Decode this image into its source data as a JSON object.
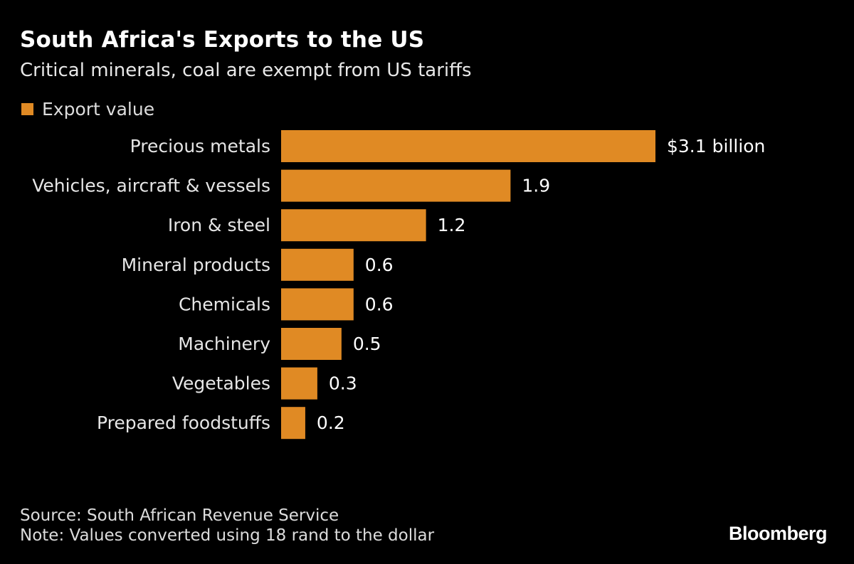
{
  "header": {
    "title": "South Africa's Exports to the US",
    "subtitle": "Critical minerals, coal are exempt from US tariffs"
  },
  "legend": {
    "label": "Export value"
  },
  "colors": {
    "bar": "#e08a24",
    "background": "#000000",
    "text": "#ffffff"
  },
  "chart_data": {
    "type": "bar",
    "orientation": "horizontal",
    "title": "South Africa's Exports to the US",
    "subtitle": "Critical minerals, coal are exempt from US tariffs",
    "categories": [
      "Precious metals",
      "Vehicles, aircraft & vessels",
      "Iron & steel",
      "Mineral products",
      "Chemicals",
      "Machinery",
      "Vegetables",
      "Prepared foodstuffs"
    ],
    "values": [
      3.1,
      1.9,
      1.2,
      0.6,
      0.6,
      0.5,
      0.3,
      0.2
    ],
    "value_labels": [
      "$3.1 billion",
      "1.9",
      "1.2",
      "0.6",
      "0.6",
      "0.5",
      "0.3",
      "0.2"
    ],
    "series": [
      {
        "name": "Export value",
        "values": [
          3.1,
          1.9,
          1.2,
          0.6,
          0.6,
          0.5,
          0.3,
          0.2
        ]
      }
    ],
    "unit": "billion USD",
    "xlim": [
      0,
      3.1
    ],
    "grid": false,
    "legend_position": "top-left"
  },
  "footer": {
    "source": "Source: South African Revenue Service",
    "note": "Note: Values converted using 18 rand to the dollar",
    "brand": "Bloomberg"
  }
}
